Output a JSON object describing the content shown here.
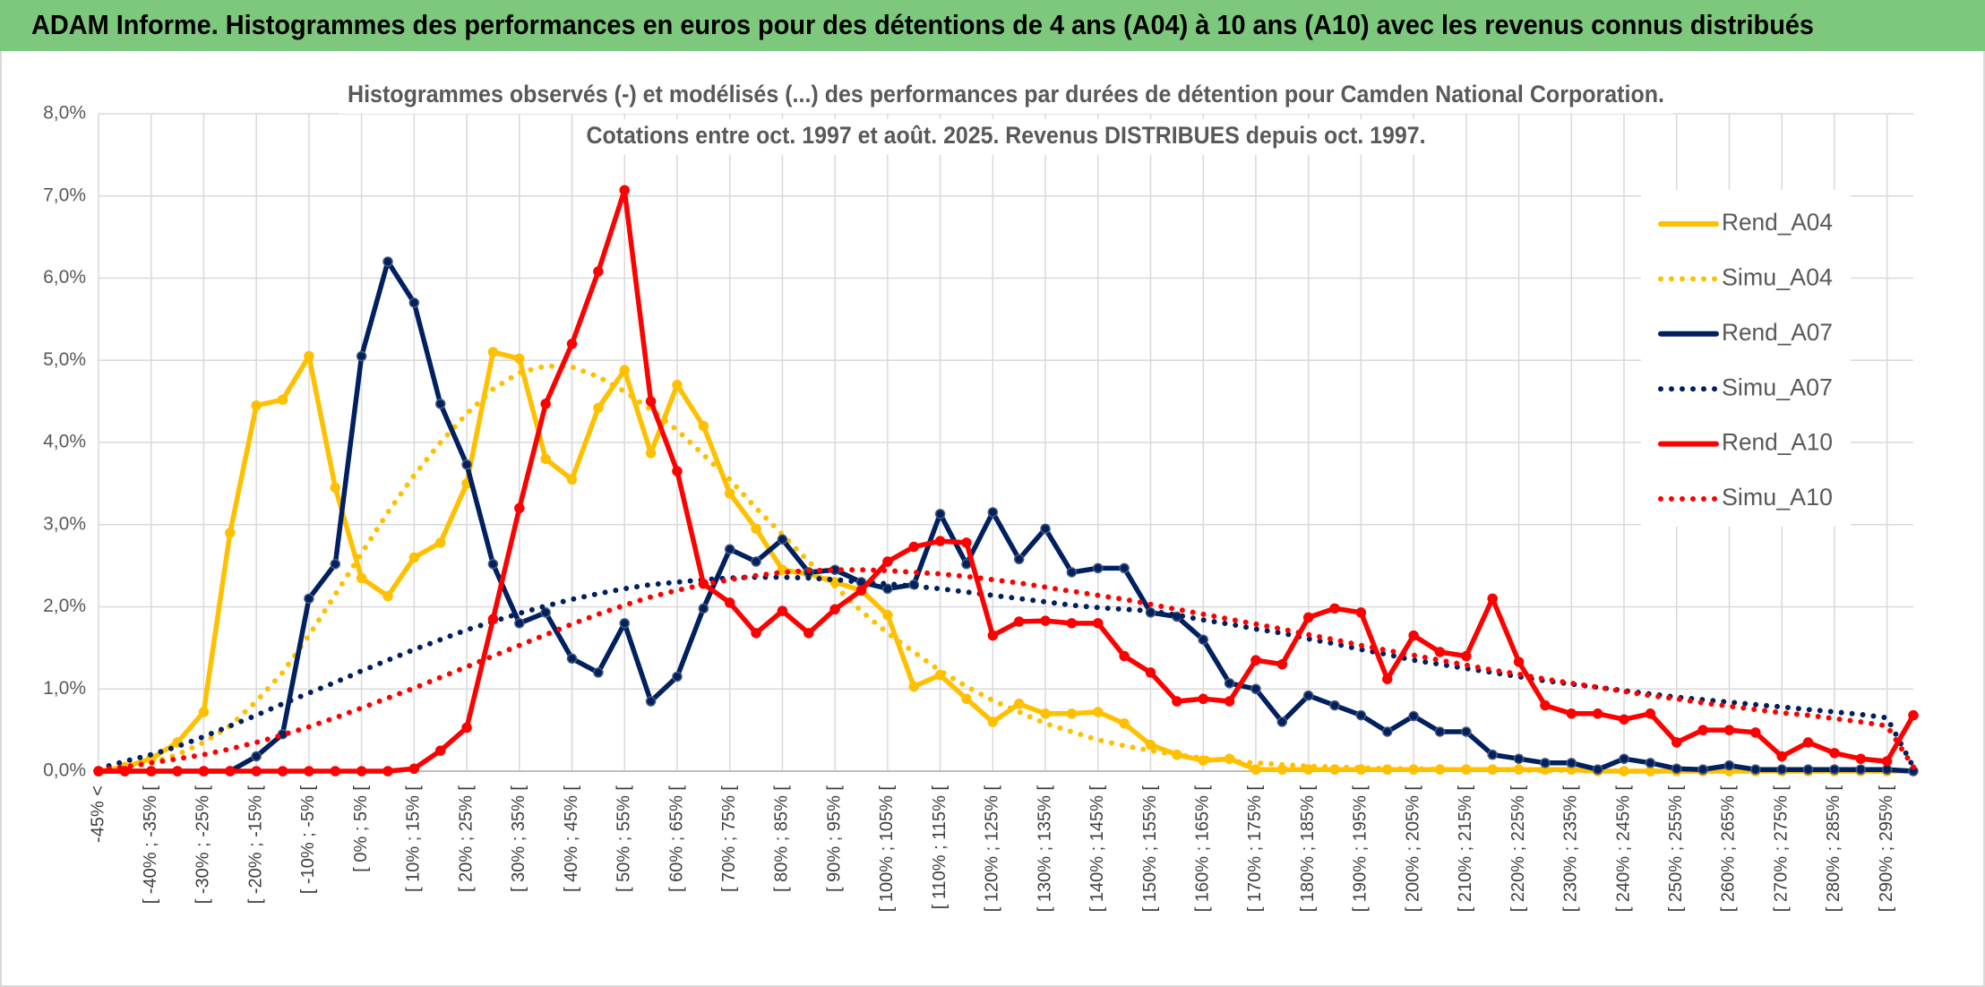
{
  "header": {
    "title": "ADAM Informe. Histogrammes des performances en euros pour des détentions de 4 ans (A04) à 10 ans (A10) avec les revenus connus distribués"
  },
  "chart_data": {
    "type": "line",
    "title": [
      "Histogrammes observés (-) et modélisés (...) des performances par durées de détention pour Camden National Corporation.",
      "Cotations entre oct. 1997 et août. 2025. Revenus DISTRIBUES depuis oct. 1997."
    ],
    "categories": [
      "-45% <",
      null,
      "[ -40% ; -35% [",
      null,
      "[ -30% ; -25% [",
      null,
      "[ -20% ; -15% [",
      null,
      "[ -10% ; -5% [",
      null,
      "[ 0% ; 5% [",
      null,
      "[ 10% ; 15% [",
      null,
      "[ 20% ; 25% [",
      null,
      "[ 30% ; 35% [",
      null,
      "[ 40% ; 45% [",
      null,
      "[ 50% ; 55% [",
      null,
      "[ 60% ; 65% [",
      null,
      "[ 70% ; 75% [",
      null,
      "[ 80% ; 85% [",
      null,
      "[ 90% ; 95% [",
      null,
      "[ 100% ; 105% [",
      null,
      "[ 110% ; 115% [",
      null,
      "[ 120% ; 125% [",
      null,
      "[ 130% ; 135% [",
      null,
      "[ 140% ; 145% [",
      null,
      "[ 150% ; 155% [",
      null,
      "[ 160% ; 165% [",
      null,
      "[ 170% ; 175% [",
      null,
      "[ 180% ; 185% [",
      null,
      "[ 190% ; 195% [",
      null,
      "[ 200% ; 205% [",
      null,
      "[ 210% ; 215% [",
      null,
      "[ 220% ; 225% [",
      null,
      "[ 230% ; 235% [",
      null,
      "[ 240% ; 245% [",
      null,
      "[ 250% ; 255% [",
      null,
      "[ 260% ; 265% [",
      null,
      "[ 270% ; 275% [",
      null,
      "[ 280% ; 285% [",
      null,
      "[ 290% ; 295% [",
      null
    ],
    "series": [
      {
        "name": "Rend_A04",
        "color": "#ffc000",
        "style": "solid",
        "markers": true,
        "values": [
          0,
          0.05,
          0.15,
          0.35,
          0.72,
          2.9,
          4.45,
          4.52,
          5.05,
          3.45,
          2.35,
          2.13,
          2.6,
          2.78,
          3.5,
          5.1,
          5.02,
          3.8,
          3.55,
          4.42,
          4.88,
          3.87,
          4.7,
          4.2,
          3.38,
          2.95,
          2.45,
          2.4,
          2.3,
          2.2,
          1.9,
          1.03,
          1.17,
          0.88,
          0.6,
          0.82,
          0.7,
          0.7,
          0.72,
          0.58,
          0.32,
          0.2,
          0.13,
          0.15,
          0.02,
          0.02,
          0.02,
          0.02,
          0.02,
          0.02,
          0.02,
          0.02,
          0.02,
          0.02,
          0.02,
          0.02,
          0.02,
          0,
          0,
          0,
          0,
          0,
          0,
          0,
          0,
          0,
          0,
          0,
          0,
          0
        ]
      },
      {
        "name": "Simu_A04",
        "color": "#ffc000",
        "style": "dotted",
        "markers": false,
        "values": [
          0.02,
          0.05,
          0.1,
          0.2,
          0.35,
          0.55,
          0.85,
          1.2,
          1.65,
          2.15,
          2.65,
          3.15,
          3.6,
          4.0,
          4.35,
          4.65,
          4.85,
          4.93,
          4.92,
          4.8,
          4.62,
          4.4,
          4.15,
          3.85,
          3.55,
          3.2,
          2.88,
          2.55,
          2.25,
          1.95,
          1.68,
          1.45,
          1.22,
          1.03,
          0.86,
          0.72,
          0.58,
          0.48,
          0.38,
          0.31,
          0.25,
          0.2,
          0.16,
          0.12,
          0.1,
          0.08,
          0.06,
          0.05,
          0.04,
          0.03,
          0.03,
          0.02,
          0.02,
          0.02,
          0.01,
          0.01,
          0.01,
          0.01,
          0,
          0,
          0,
          0,
          0,
          0,
          0,
          0,
          0,
          0,
          0,
          0
        ]
      },
      {
        "name": "Rend_A07",
        "color": "#002060",
        "style": "solid",
        "markers": true,
        "values": [
          0,
          0,
          0,
          0,
          0,
          0,
          0.18,
          0.45,
          2.1,
          2.52,
          5.05,
          6.2,
          5.7,
          4.47,
          3.73,
          2.52,
          1.8,
          1.93,
          1.37,
          1.2,
          1.8,
          0.85,
          1.15,
          1.98,
          2.7,
          2.55,
          2.82,
          2.42,
          2.45,
          2.3,
          2.22,
          2.27,
          3.13,
          2.52,
          3.15,
          2.58,
          2.95,
          2.42,
          2.47,
          2.47,
          1.93,
          1.88,
          1.6,
          1.07,
          1.0,
          0.6,
          0.92,
          0.8,
          0.68,
          0.48,
          0.67,
          0.48,
          0.48,
          0.2,
          0.15,
          0.1,
          0.1,
          0.02,
          0.15,
          0.1,
          0.03,
          0.02,
          0.07,
          0.02,
          0.02,
          0.02,
          0.02,
          0.02,
          0.02,
          0
        ]
      },
      {
        "name": "Simu_A07",
        "color": "#002060",
        "style": "dotted",
        "markers": false,
        "values": [
          0.03,
          0.12,
          0.2,
          0.3,
          0.42,
          0.55,
          0.68,
          0.82,
          0.95,
          1.08,
          1.22,
          1.35,
          1.48,
          1.6,
          1.72,
          1.82,
          1.92,
          2.01,
          2.09,
          2.16,
          2.22,
          2.27,
          2.3,
          2.33,
          2.35,
          2.36,
          2.36,
          2.35,
          2.33,
          2.3,
          2.28,
          2.25,
          2.22,
          2.18,
          2.14,
          2.1,
          2.06,
          2.02,
          1.99,
          1.97,
          1.95,
          1.9,
          1.84,
          1.79,
          1.73,
          1.68,
          1.61,
          1.55,
          1.48,
          1.42,
          1.35,
          1.3,
          1.25,
          1.2,
          1.15,
          1.1,
          1.06,
          1.02,
          0.98,
          0.94,
          0.9,
          0.87,
          0.84,
          0.81,
          0.78,
          0.75,
          0.72,
          0.69,
          0.65,
          0.05
        ]
      },
      {
        "name": "Rend_A10",
        "color": "#ff0000",
        "style": "solid",
        "markers": true,
        "values": [
          0,
          0,
          0,
          0,
          0,
          0,
          0,
          0,
          0,
          0,
          0,
          0,
          0.03,
          0.25,
          0.53,
          1.85,
          3.2,
          4.47,
          5.2,
          6.08,
          7.07,
          4.5,
          3.65,
          2.28,
          2.05,
          1.68,
          1.95,
          1.68,
          1.97,
          2.2,
          2.55,
          2.73,
          2.8,
          2.78,
          1.65,
          1.82,
          1.83,
          1.8,
          1.8,
          1.4,
          1.2,
          0.85,
          0.88,
          0.85,
          1.35,
          1.3,
          1.87,
          1.98,
          1.93,
          1.12,
          1.65,
          1.45,
          1.4,
          2.1,
          1.33,
          0.8,
          0.7,
          0.7,
          0.63,
          0.7,
          0.35,
          0.5,
          0.5,
          0.47,
          0.18,
          0.35,
          0.22,
          0.15,
          0.12,
          0.68
        ]
      },
      {
        "name": "Simu_A10",
        "color": "#ff0000",
        "style": "dotted",
        "markers": false,
        "values": [
          0.02,
          0.05,
          0.1,
          0.15,
          0.2,
          0.27,
          0.35,
          0.44,
          0.54,
          0.65,
          0.77,
          0.89,
          1.01,
          1.14,
          1.27,
          1.4,
          1.53,
          1.66,
          1.79,
          1.91,
          2.02,
          2.12,
          2.2,
          2.27,
          2.33,
          2.38,
          2.42,
          2.44,
          2.45,
          2.45,
          2.44,
          2.42,
          2.4,
          2.37,
          2.33,
          2.29,
          2.24,
          2.19,
          2.14,
          2.09,
          2.03,
          1.97,
          1.91,
          1.85,
          1.79,
          1.73,
          1.66,
          1.6,
          1.53,
          1.47,
          1.41,
          1.35,
          1.29,
          1.23,
          1.18,
          1.12,
          1.07,
          1.02,
          0.97,
          0.92,
          0.88,
          0.83,
          0.79,
          0.75,
          0.71,
          0.68,
          0.64,
          0.6,
          0.55,
          0.05
        ]
      }
    ],
    "ylim": [
      0,
      8
    ],
    "yticks": [
      {
        "value": 0,
        "label": "0,0%"
      },
      {
        "value": 1,
        "label": "1,0%"
      },
      {
        "value": 2,
        "label": "2,0%"
      },
      {
        "value": 3,
        "label": "3,0%"
      },
      {
        "value": 4,
        "label": "4,0%"
      },
      {
        "value": 5,
        "label": "5,0%"
      },
      {
        "value": 6,
        "label": "6,0%"
      },
      {
        "value": 7,
        "label": "7,0%"
      },
      {
        "value": 8,
        "label": "8,0%"
      }
    ],
    "grid": true,
    "legend": "top-right"
  }
}
